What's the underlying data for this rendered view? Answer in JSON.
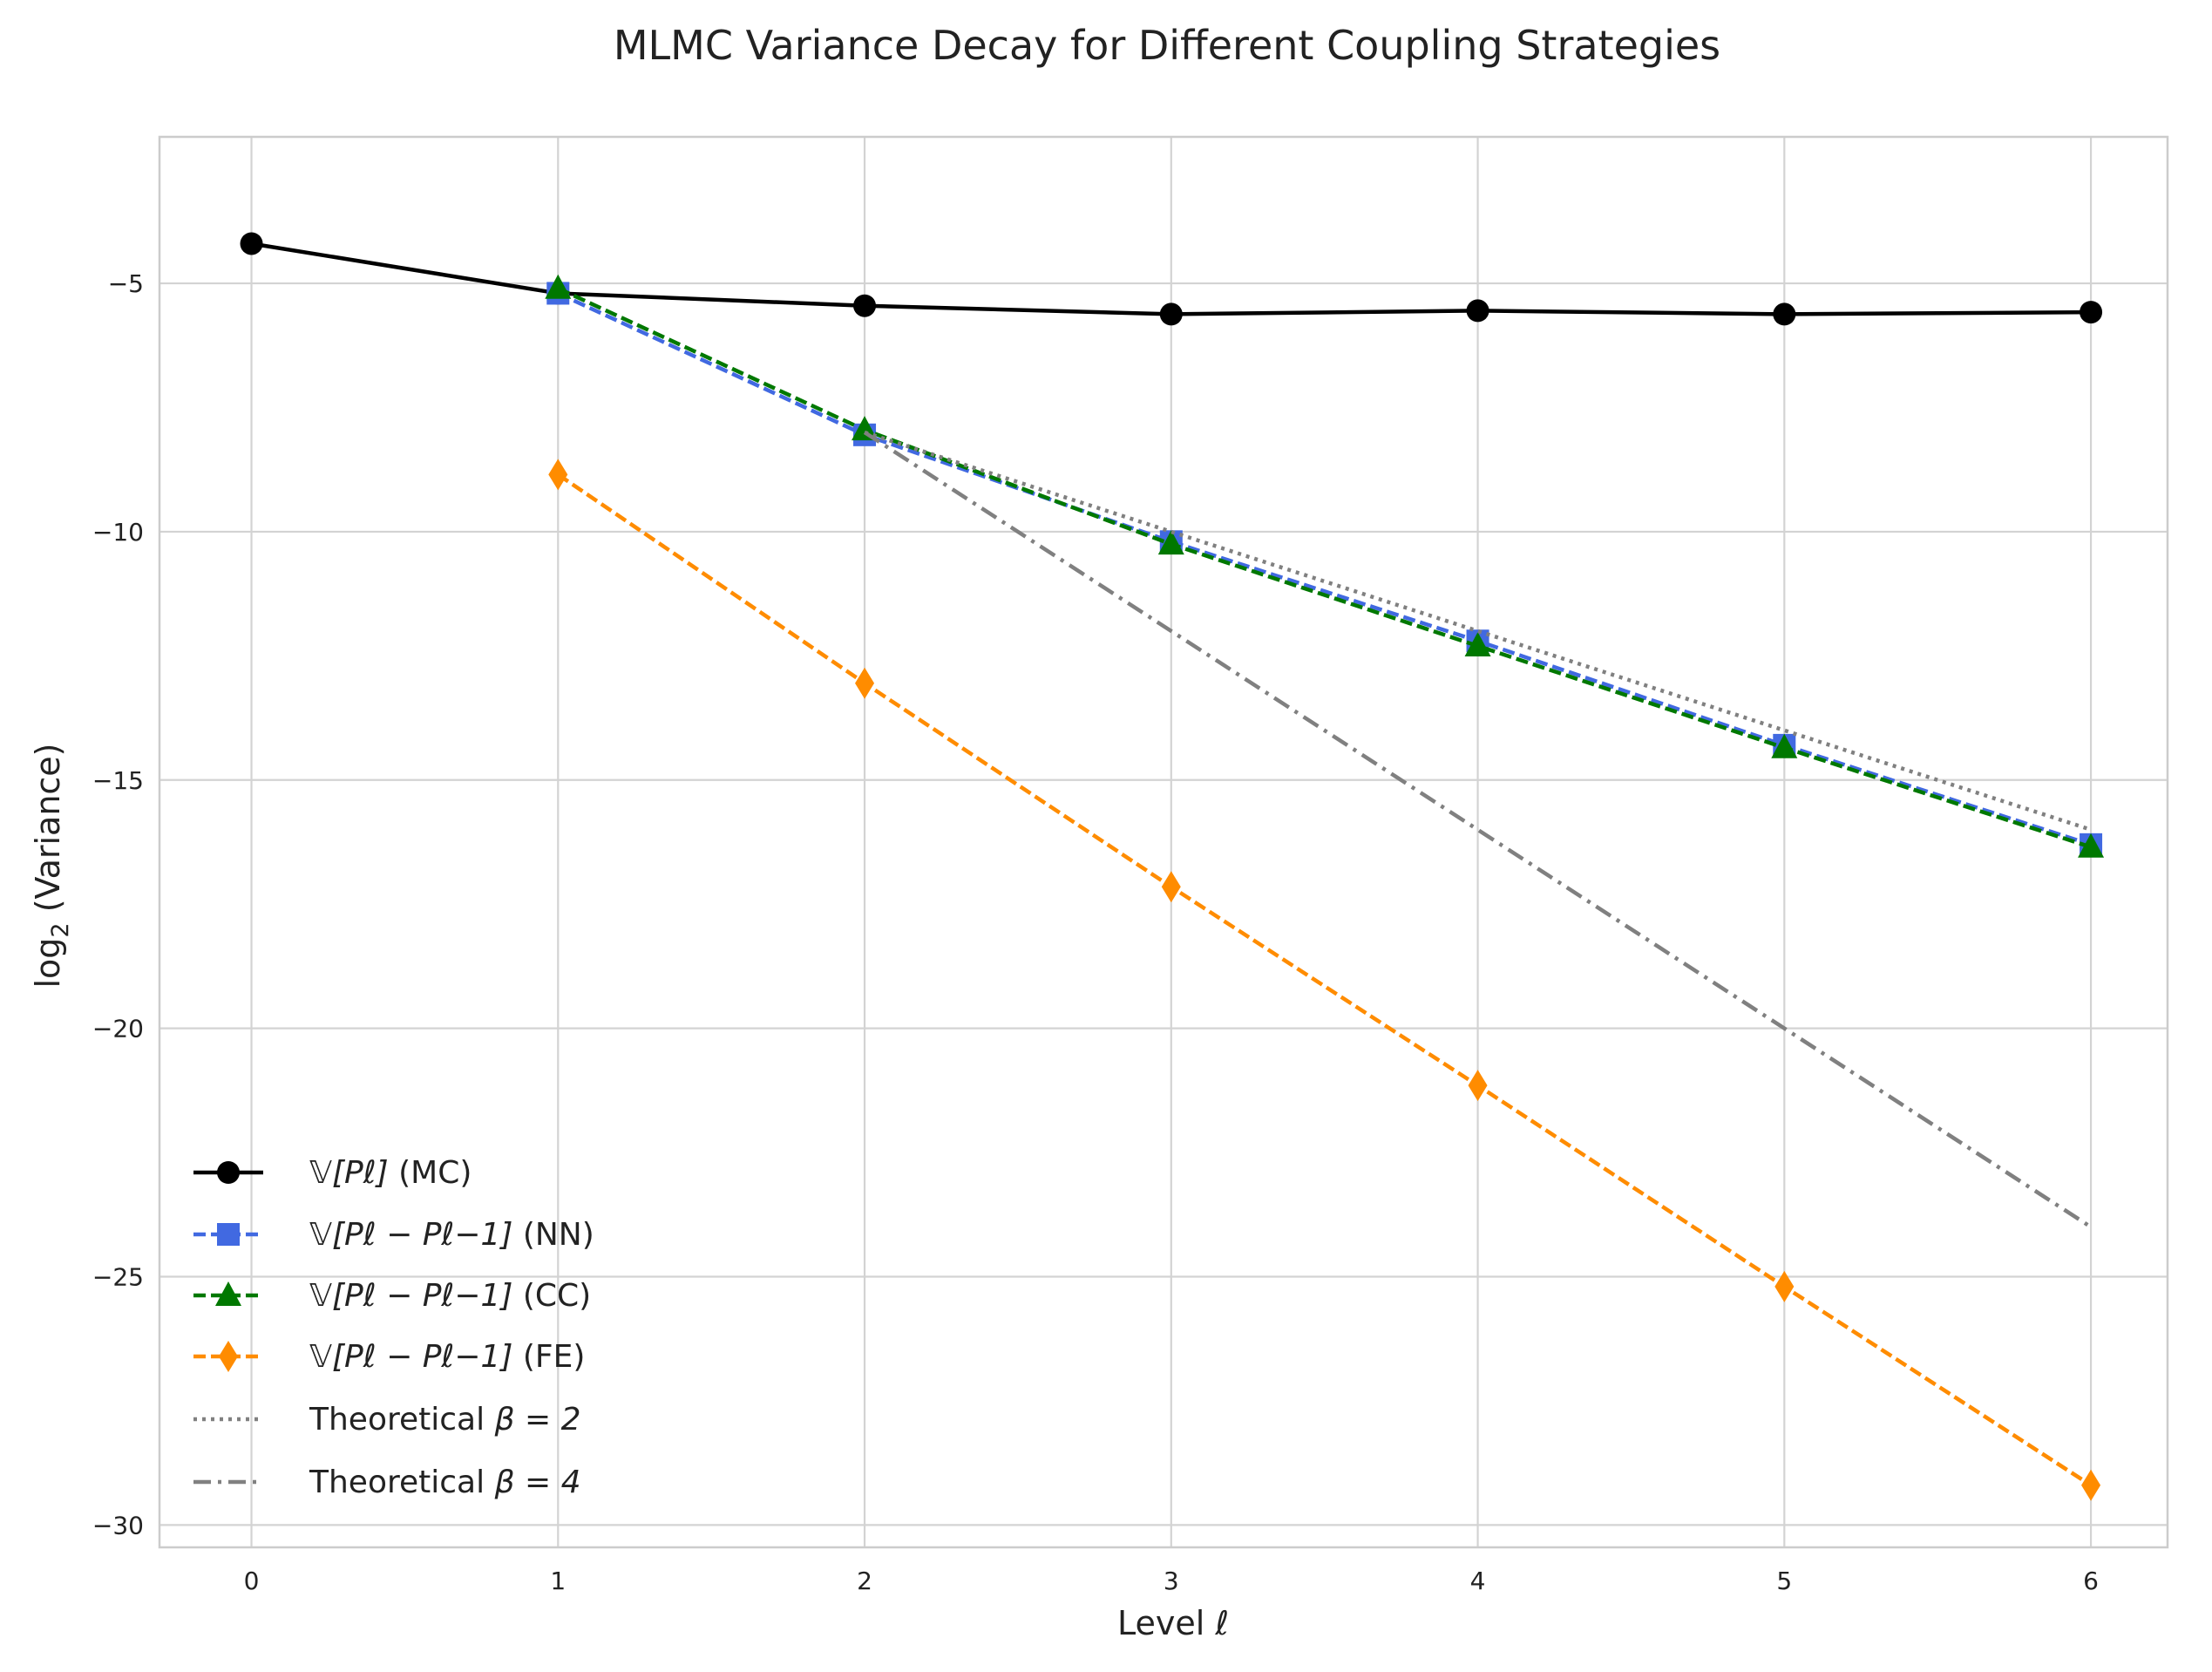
{
  "chart_data": {
    "type": "line",
    "title": "MLMC Variance Decay for Different Coupling Strategies",
    "xlabel": "Level ℓ",
    "ylabel_main": "log",
    "ylabel_sub": "2",
    "ylabel_rest": " (Variance)",
    "xlim": [
      -0.3,
      6.25
    ],
    "ylim": [
      -30.45,
      -2.05
    ],
    "xticks": [
      0,
      1,
      2,
      3,
      4,
      5,
      6
    ],
    "xtick_labels": [
      "0",
      "1",
      "2",
      "3",
      "4",
      "5",
      "6"
    ],
    "yticks": [
      -5,
      -10,
      -15,
      -20,
      -25,
      -30
    ],
    "ytick_labels": [
      "−5",
      "−10",
      "−15",
      "−20",
      "−25",
      "−30"
    ],
    "grid": true,
    "legend_position": "lower-left",
    "series": [
      {
        "key": "mc",
        "name": "𝕍[Pℓ] (MC)",
        "color": "#000000",
        "dash": "solid",
        "marker": "circle",
        "x": [
          0,
          1,
          2,
          3,
          4,
          5,
          6
        ],
        "y": [
          -4.2,
          -5.2,
          -5.45,
          -5.62,
          -5.55,
          -5.62,
          -5.58
        ]
      },
      {
        "key": "nn",
        "name": "𝕍[Pℓ − Pℓ−1] (NN)",
        "color": "#4169e1",
        "dash": "dashed",
        "marker": "square",
        "x": [
          1,
          2,
          3,
          4,
          5,
          6
        ],
        "y": [
          -5.2,
          -8.05,
          -10.2,
          -12.2,
          -14.3,
          -16.3
        ]
      },
      {
        "key": "cc",
        "name": "𝕍[Pℓ − Pℓ−1] (CC)",
        "color": "#007800",
        "dash": "dashed",
        "marker": "triangle",
        "x": [
          1,
          2,
          3,
          4,
          5,
          6
        ],
        "y": [
          -5.1,
          -7.95,
          -10.25,
          -12.3,
          -14.35,
          -16.35
        ]
      },
      {
        "key": "fe",
        "name": "𝕍[Pℓ − Pℓ−1] (FE)",
        "color": "#ff8c00",
        "dash": "dashed",
        "marker": "diamond",
        "x": [
          1,
          2,
          3,
          4,
          5,
          6
        ],
        "y": [
          -8.85,
          -13.05,
          -17.15,
          -21.15,
          -25.2,
          -29.2
        ]
      },
      {
        "key": "b2",
        "name": "Theoretical β = 2",
        "color": "#808080",
        "dash": "dotted",
        "marker": "none",
        "x": [
          2,
          3,
          4,
          5,
          6
        ],
        "y": [
          -8.0,
          -10.0,
          -12.0,
          -14.0,
          -16.0
        ]
      },
      {
        "key": "b4",
        "name": "Theoretical β = 4",
        "color": "#808080",
        "dash": "dashdot",
        "marker": "none",
        "x": [
          2,
          3,
          4,
          5,
          6
        ],
        "y": [
          -8.0,
          -12.0,
          -16.0,
          -20.0,
          -24.0
        ]
      }
    ],
    "legend": [
      {
        "label_math": "𝕍[Pℓ]",
        "label_text": " (MC)"
      },
      {
        "label_math": "𝕍[Pℓ − Pℓ−1]",
        "label_text": " (NN)"
      },
      {
        "label_math": "𝕍[Pℓ − Pℓ−1]",
        "label_text": " (CC)"
      },
      {
        "label_math": "𝕍[Pℓ − Pℓ−1]",
        "label_text": " (FE)"
      },
      {
        "label_text": "Theoretical ",
        "label_math": "β = 2"
      },
      {
        "label_text": "Theoretical ",
        "label_math": "β = 4"
      }
    ]
  }
}
